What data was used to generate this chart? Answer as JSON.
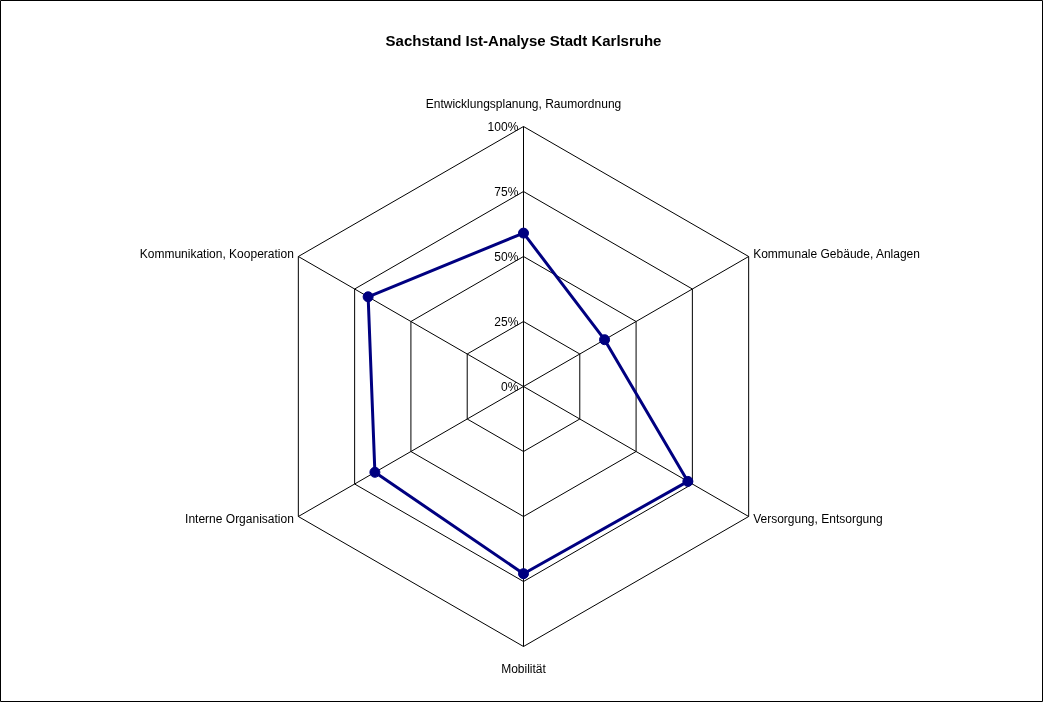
{
  "chart_data": {
    "type": "radar",
    "title": "Sachstand Ist-Analyse Stadt Karlsruhe",
    "categories": [
      "Entwicklungsplanung, Raumordnung",
      "Kommunale Gebäude, Anlagen",
      "Versorgung, Entsorgung",
      "Mobilität",
      "Interne Organisation",
      "Kommunikation, Kooperation"
    ],
    "series": [
      {
        "color": "#000080",
        "values": [
          59,
          36,
          73,
          72,
          66,
          69
        ]
      }
    ],
    "ylim": [
      0,
      100
    ],
    "yticks": [
      {
        "value": 0,
        "label": "0%"
      },
      {
        "value": 25,
        "label": "25%"
      },
      {
        "value": 50,
        "label": "50%"
      },
      {
        "value": 75,
        "label": "75%"
      },
      {
        "value": 100,
        "label": "100%"
      }
    ],
    "marker": "circle",
    "line_style": "solid",
    "grid": true
  }
}
